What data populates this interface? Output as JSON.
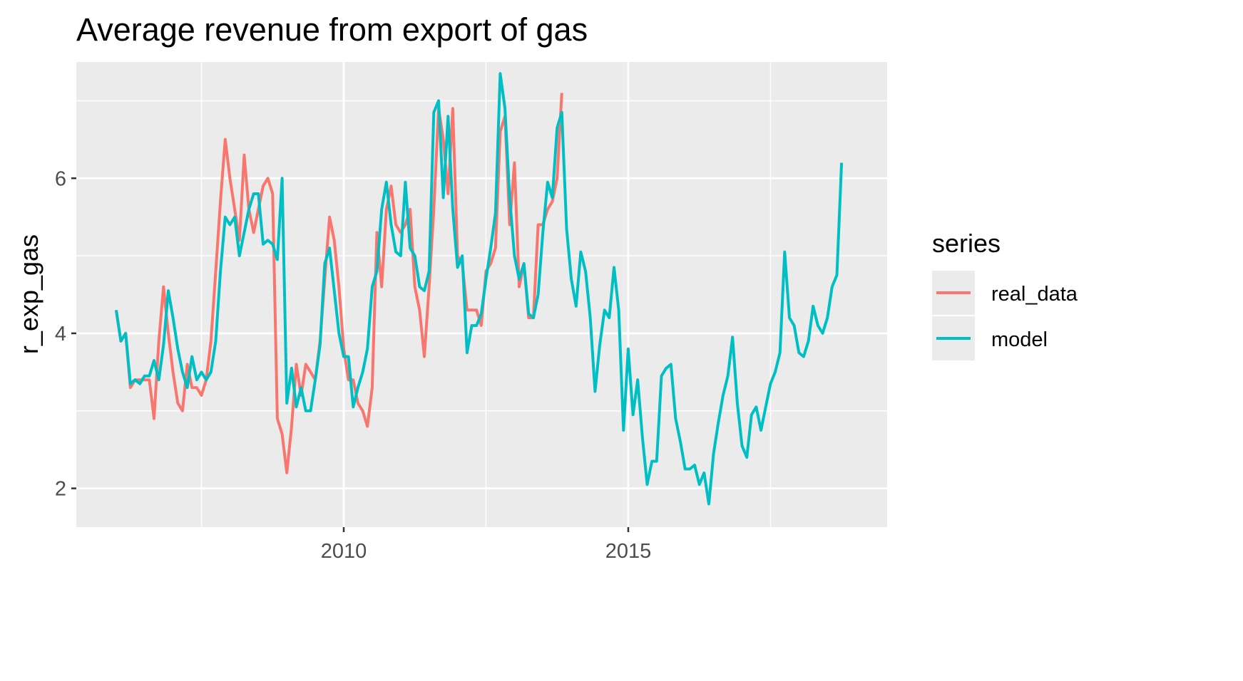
{
  "chart_data": {
    "type": "line",
    "title": "Average revenue from export of gas",
    "xlabel": "",
    "ylabel": "r_exp_gas",
    "xlim": [
      2005.3,
      2019.55
    ],
    "ylim": [
      1.5,
      7.5
    ],
    "x_ticks": [
      2010,
      2015
    ],
    "x_tick_labels": [
      "2010",
      "2015"
    ],
    "y_ticks": [
      2,
      4,
      6
    ],
    "y_tick_labels": [
      "2",
      "4",
      "6"
    ],
    "grid": true,
    "legend": {
      "title": "series",
      "position": "right",
      "entries": [
        "real_data",
        "model"
      ]
    },
    "colors": {
      "real_data": "#F8766D",
      "model": "#00BFC4",
      "panel": "#EBEBEB",
      "grid": "#FFFFFF"
    },
    "series": [
      {
        "name": "real_data",
        "start": 2006.0,
        "step": 0.08333,
        "values": [
          4.3,
          3.9,
          4.0,
          3.3,
          3.4,
          3.4,
          3.4,
          3.4,
          2.9,
          3.9,
          4.6,
          4.0,
          3.5,
          3.1,
          3.0,
          3.6,
          3.3,
          3.3,
          3.2,
          3.4,
          3.9,
          4.8,
          5.7,
          6.5,
          6.0,
          5.6,
          5.2,
          6.3,
          5.6,
          5.3,
          5.6,
          5.9,
          6.0,
          5.8,
          2.9,
          2.7,
          2.2,
          2.8,
          3.6,
          3.2,
          3.6,
          3.5,
          3.4,
          3.9,
          4.7,
          5.5,
          5.2,
          4.6,
          3.8,
          3.4,
          3.4,
          3.1,
          3.0,
          2.8,
          3.3,
          5.3,
          4.6,
          5.6,
          5.9,
          5.4,
          5.3,
          5.4,
          5.6,
          4.6,
          4.3,
          3.7,
          4.6,
          5.6,
          6.9,
          6.5,
          5.8,
          6.9,
          5.0,
          4.9,
          4.3,
          4.3,
          4.3,
          4.1,
          4.8,
          4.9,
          5.1,
          6.6,
          6.8,
          5.4,
          6.2,
          4.6,
          4.9,
          4.2,
          4.2,
          5.4,
          5.4,
          5.6,
          5.7,
          6.0,
          7.1
        ]
      },
      {
        "name": "model",
        "start": 2006.0,
        "step": 0.08333,
        "values": [
          4.3,
          3.9,
          4.0,
          3.35,
          3.4,
          3.35,
          3.45,
          3.45,
          3.65,
          3.4,
          3.85,
          4.55,
          4.2,
          3.8,
          3.5,
          3.3,
          3.7,
          3.4,
          3.5,
          3.4,
          3.5,
          3.9,
          4.8,
          5.5,
          5.4,
          5.5,
          5.0,
          5.3,
          5.6,
          5.8,
          5.8,
          5.15,
          5.2,
          5.15,
          4.95,
          6.0,
          3.1,
          3.55,
          3.05,
          3.3,
          3.0,
          3.0,
          3.4,
          3.85,
          4.9,
          5.1,
          4.55,
          4.0,
          3.7,
          3.7,
          3.05,
          3.3,
          3.5,
          3.8,
          4.6,
          4.8,
          5.6,
          5.95,
          5.4,
          5.05,
          5.0,
          5.95,
          5.1,
          5.0,
          4.6,
          4.55,
          4.8,
          6.85,
          7.0,
          5.75,
          6.8,
          5.6,
          4.85,
          5.0,
          3.75,
          4.1,
          4.1,
          4.25,
          4.7,
          5.1,
          5.55,
          7.35,
          6.9,
          5.75,
          5.0,
          4.7,
          4.9,
          4.25,
          4.2,
          4.5,
          5.3,
          5.95,
          5.75,
          6.65,
          6.85,
          5.35,
          4.7,
          4.35,
          5.05,
          4.8,
          4.2,
          3.25,
          3.85,
          4.3,
          4.2,
          4.85,
          4.3,
          2.75,
          3.8,
          2.95,
          3.4,
          2.65,
          2.05,
          2.35,
          2.35,
          3.45,
          3.55,
          3.6,
          2.9,
          2.6,
          2.25,
          2.25,
          2.3,
          2.05,
          2.2,
          1.8,
          2.45,
          2.85,
          3.2,
          3.45,
          3.95,
          3.1,
          2.55,
          2.4,
          2.95,
          3.05,
          2.75,
          3.05,
          3.35,
          3.5,
          3.75,
          5.05,
          4.2,
          4.1,
          3.75,
          3.7,
          3.9,
          4.35,
          4.1,
          4.0,
          4.2,
          4.6,
          4.75,
          6.2
        ]
      }
    ]
  }
}
